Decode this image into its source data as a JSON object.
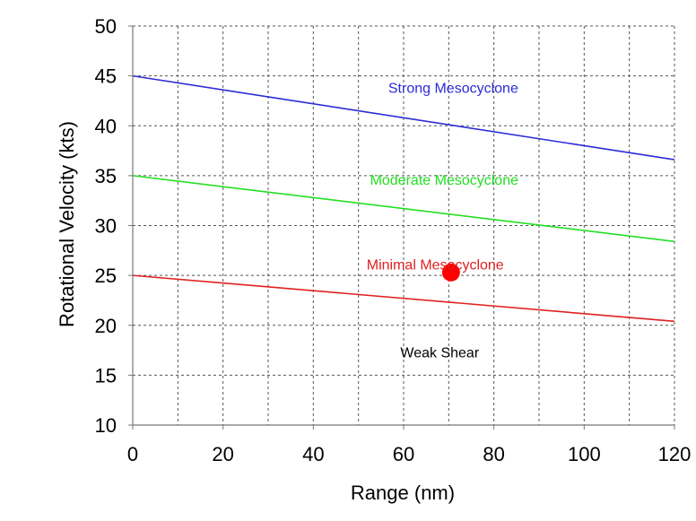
{
  "chart_data": {
    "type": "line",
    "title": "",
    "xlabel": "Range (nm)",
    "ylabel": "Rotational Velocity (kts)",
    "xlim": [
      0,
      120
    ],
    "ylim": [
      10,
      50
    ],
    "x_ticks": [
      0,
      20,
      40,
      60,
      80,
      100,
      120
    ],
    "y_ticks": [
      10,
      15,
      20,
      25,
      30,
      35,
      40,
      45,
      50
    ],
    "x_grid_step": 10,
    "y_grid_step": 5,
    "grid": true,
    "series": [
      {
        "name": "Strong Mesocyclone",
        "color": "#2b2bd6",
        "x": [
          0,
          120
        ],
        "y": [
          45,
          36.6
        ],
        "label_at": [
          71,
          43.3
        ]
      },
      {
        "name": "Moderate Mesocyclone",
        "color": "#22e022",
        "x": [
          0,
          120
        ],
        "y": [
          35,
          28.4
        ],
        "label_at": [
          69,
          34.1
        ]
      },
      {
        "name": "Minimal Mesocyclone",
        "color": "#e02020",
        "x": [
          0,
          120
        ],
        "y": [
          25,
          20.4
        ],
        "label_at": [
          67,
          25.6
        ]
      }
    ],
    "annotations": [
      {
        "text": "Weak Shear",
        "x": 68,
        "y": 16.8,
        "color": "#000000"
      }
    ],
    "points": [
      {
        "x": 70.5,
        "y": 25.3,
        "color": "#ff0000"
      }
    ]
  }
}
